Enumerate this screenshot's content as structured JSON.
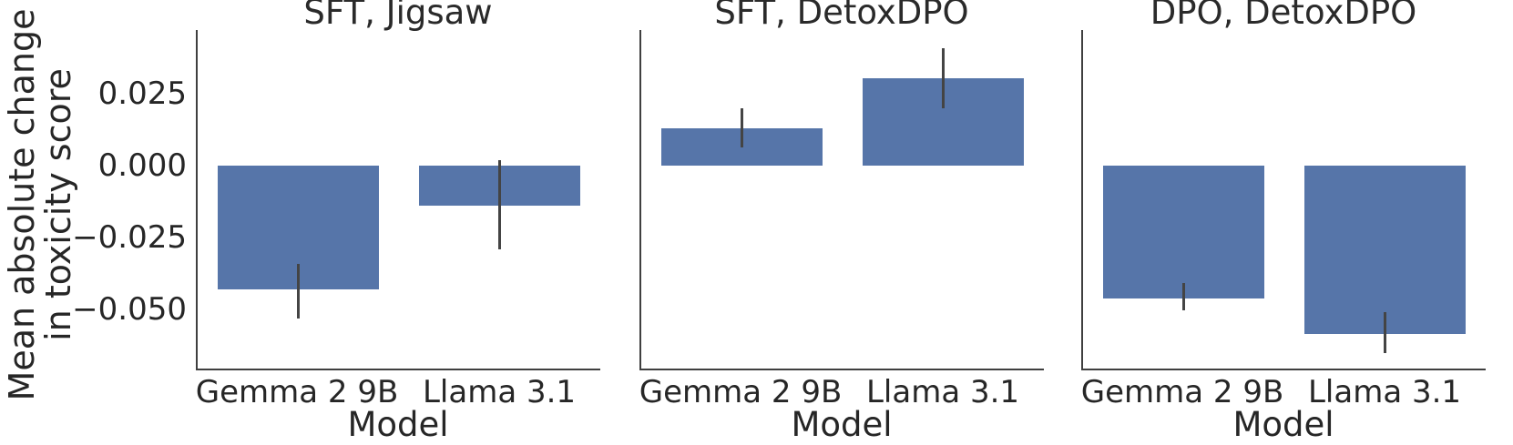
{
  "figure": {
    "ylabel_line1": "Mean absolute change",
    "ylabel_line2": "in toxicity score",
    "colors": {
      "bar": "#5675a9",
      "error_bar": "#444444",
      "spine": "#3f3f3f",
      "text": "#262626"
    }
  },
  "chart_data": [
    {
      "type": "bar",
      "title": "SFT, Jigsaw",
      "xlabel": "Model",
      "ylabel": "Mean absolute change in toxicity score",
      "categories": [
        "Gemma 2 9B",
        "Llama 3.1"
      ],
      "values": [
        -0.043,
        -0.014
      ],
      "error_bars": [
        [
          -0.053,
          -0.034
        ],
        [
          -0.029,
          0.002
        ]
      ],
      "yticks": [
        {
          "label": "0.025",
          "value": 0.025
        },
        {
          "label": "0.000",
          "value": 0.0
        },
        {
          "label": "−0.025",
          "value": -0.025
        },
        {
          "label": "−0.050",
          "value": -0.05
        }
      ],
      "ylim": [
        -0.0705,
        0.0472
      ],
      "show_ytick_labels": true,
      "grid": false,
      "legend": null
    },
    {
      "type": "bar",
      "title": "SFT, DetoxDPO",
      "xlabel": "Model",
      "ylabel": "",
      "categories": [
        "Gemma 2 9B",
        "Llama 3.1"
      ],
      "values": [
        0.013,
        0.0305
      ],
      "error_bars": [
        [
          0.0065,
          0.02
        ],
        [
          0.02,
          0.041
        ]
      ],
      "yticks": [
        {
          "label": "0.025",
          "value": 0.025
        },
        {
          "label": "0.000",
          "value": 0.0
        },
        {
          "label": "−0.025",
          "value": -0.025
        },
        {
          "label": "−0.050",
          "value": -0.05
        }
      ],
      "ylim": [
        -0.0705,
        0.0472
      ],
      "show_ytick_labels": false,
      "grid": false,
      "legend": null
    },
    {
      "type": "bar",
      "title": "DPO, DetoxDPO",
      "xlabel": "Model",
      "ylabel": "",
      "categories": [
        "Gemma 2 9B",
        "Llama 3.1"
      ],
      "values": [
        -0.046,
        -0.0585
      ],
      "error_bars": [
        [
          -0.0503,
          -0.0408
        ],
        [
          -0.065,
          -0.051
        ]
      ],
      "yticks": [
        {
          "label": "0.025",
          "value": 0.025
        },
        {
          "label": "0.000",
          "value": 0.0
        },
        {
          "label": "−0.025",
          "value": -0.025
        },
        {
          "label": "−0.050",
          "value": -0.05
        }
      ],
      "ylim": [
        -0.0705,
        0.0472
      ],
      "show_ytick_labels": false,
      "grid": false,
      "legend": null
    }
  ]
}
